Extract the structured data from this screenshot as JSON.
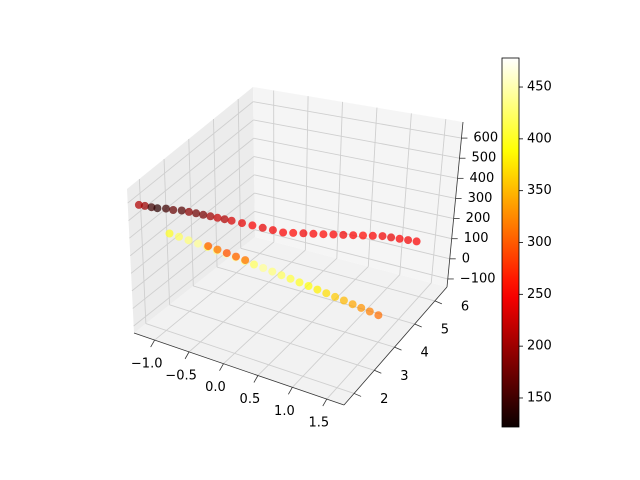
{
  "chart_data": {
    "type": "scatter",
    "projection": "3d",
    "title": "",
    "xlabel": "",
    "ylabel": "",
    "zlabel": "",
    "grid": true,
    "xlim": [
      -1.3,
      1.75
    ],
    "ylim": [
      1.5,
      6.6
    ],
    "zlim": [
      -140,
      680
    ],
    "x_ticks": [
      -1.0,
      -0.5,
      0.0,
      0.5,
      1.0,
      1.5
    ],
    "x_tick_labels": [
      "−1.0",
      "−0.5",
      "0.0",
      "0.5",
      "1.0",
      "1.5"
    ],
    "y_ticks": [
      2,
      3,
      4,
      5,
      6
    ],
    "y_tick_labels": [
      "2",
      "3",
      "4",
      "5",
      "6"
    ],
    "z_ticks": [
      -100,
      0,
      100,
      200,
      300,
      400,
      500,
      600
    ],
    "z_tick_labels": [
      "−100",
      "0",
      "100",
      "200",
      "300",
      "400",
      "500",
      "600"
    ],
    "colormap": "hot",
    "colorbar": {
      "range": [
        122,
        478
      ],
      "ticks": [
        150,
        200,
        250,
        300,
        350,
        400,
        450
      ],
      "tick_labels": [
        "150",
        "200",
        "250",
        "300",
        "350",
        "400",
        "450"
      ]
    },
    "series": [
      {
        "points": [
          [
            -1.25,
            1.8,
            560,
            210
          ],
          [
            -1.22,
            1.95,
            540,
            200
          ],
          [
            -1.18,
            2.1,
            520,
            150
          ],
          [
            -1.15,
            2.25,
            500,
            140
          ],
          [
            -1.1,
            2.45,
            480,
            150
          ],
          [
            -1.05,
            2.6,
            460,
            170
          ],
          [
            -1.0,
            2.8,
            440,
            160
          ],
          [
            -0.95,
            2.95,
            420,
            190
          ],
          [
            -0.9,
            3.1,
            400,
            175
          ],
          [
            -0.85,
            3.25,
            380,
            180
          ],
          [
            -0.8,
            3.4,
            360,
            200
          ],
          [
            -0.75,
            3.55,
            340,
            220
          ],
          [
            -0.7,
            3.7,
            320,
            210
          ],
          [
            -0.65,
            3.85,
            300,
            230
          ],
          [
            -0.55,
            4.0,
            280,
            240
          ],
          [
            -0.45,
            4.15,
            260,
            250
          ],
          [
            -0.35,
            4.3,
            240,
            240
          ],
          [
            -0.25,
            4.45,
            220,
            245
          ],
          [
            -0.15,
            4.6,
            200,
            250
          ],
          [
            -0.05,
            4.75,
            190,
            255
          ],
          [
            0.05,
            4.9,
            180,
            245
          ],
          [
            0.15,
            5.05,
            170,
            250
          ],
          [
            0.25,
            5.2,
            160,
            255
          ],
          [
            0.35,
            5.35,
            150,
            250
          ],
          [
            0.45,
            5.5,
            140,
            245
          ],
          [
            0.55,
            5.65,
            130,
            250
          ],
          [
            0.65,
            5.8,
            120,
            255
          ],
          [
            0.75,
            5.95,
            110,
            250
          ],
          [
            0.85,
            6.1,
            100,
            245
          ],
          [
            0.95,
            6.2,
            90,
            240
          ],
          [
            1.05,
            6.3,
            80,
            250
          ],
          [
            1.15,
            6.4,
            70,
            245
          ],
          [
            1.25,
            6.5,
            60,
            250
          ],
          [
            -0.9,
            2.0,
            410,
            400
          ],
          [
            -0.8,
            2.1,
            390,
            420
          ],
          [
            -0.7,
            2.2,
            370,
            430
          ],
          [
            -0.6,
            2.3,
            350,
            440
          ],
          [
            -0.5,
            2.4,
            330,
            420
          ],
          [
            -0.4,
            2.5,
            310,
            430
          ],
          [
            -0.3,
            2.6,
            290,
            450
          ],
          [
            -0.2,
            2.7,
            270,
            440
          ],
          [
            -0.1,
            2.8,
            250,
            430
          ],
          [
            0.0,
            2.9,
            230,
            420
          ],
          [
            0.1,
            3.0,
            210,
            440
          ],
          [
            0.2,
            3.1,
            190,
            430
          ],
          [
            0.3,
            3.2,
            170,
            420
          ],
          [
            0.4,
            3.3,
            150,
            410
          ],
          [
            0.5,
            3.4,
            130,
            400
          ],
          [
            0.6,
            3.5,
            110,
            390
          ],
          [
            0.7,
            3.6,
            90,
            380
          ],
          [
            0.8,
            3.7,
            70,
            370
          ],
          [
            0.9,
            3.8,
            50,
            360
          ],
          [
            1.0,
            3.9,
            30,
            350
          ],
          [
            1.1,
            4.0,
            10,
            340
          ],
          [
            1.2,
            4.1,
            -10,
            330
          ],
          [
            1.3,
            4.2,
            -30,
            320
          ],
          [
            1.4,
            4.3,
            -50,
            310
          ],
          [
            -0.7,
            3.0,
            250,
            300
          ],
          [
            -0.6,
            3.1,
            230,
            310
          ],
          [
            -0.5,
            3.2,
            210,
            290
          ],
          [
            -0.4,
            3.3,
            190,
            300
          ],
          [
            -0.3,
            3.4,
            170,
            310
          ]
        ]
      }
    ]
  }
}
